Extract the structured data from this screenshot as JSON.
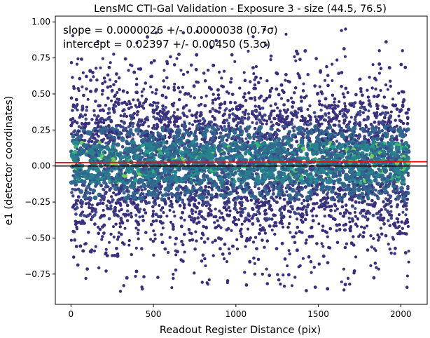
{
  "chart_data": {
    "type": "scatter",
    "title": "LensMC CTI-Gal Validation - Exposure 3 - size (44.5, 76.5)",
    "xlabel": "Readout Register Distance (pix)",
    "ylabel": "e1 (detector coordinates)",
    "xlim": [
      -95,
      2160
    ],
    "ylim": [
      -0.96,
      1.04
    ],
    "xticks": [
      0,
      500,
      1000,
      1500,
      2000
    ],
    "yticks": [
      -0.75,
      -0.5,
      -0.25,
      0.0,
      0.25,
      0.5,
      0.75,
      1.0
    ],
    "xtick_labels": [
      "0",
      "500",
      "1000",
      "1500",
      "2000"
    ],
    "ytick_labels": [
      "−0.75",
      "−0.50",
      "−0.25",
      "0.00",
      "0.25",
      "0.50",
      "0.75",
      "1.00"
    ],
    "grid": false,
    "colormap": "viridis",
    "annotations": [
      "slope = 0.0000026 +/- 0.0000038 (0.7σ)",
      "intercept = 0.02397 +/- 0.00450 (5.3σ)"
    ],
    "lines": {
      "zero_line": {
        "y": 0.0,
        "color": "#000000"
      },
      "fit_line": {
        "slope": 2.6e-06,
        "intercept": 0.02397,
        "color": "#ff0000"
      }
    },
    "points_summary": {
      "n_points_approx": 9000,
      "x_range": [
        0,
        2048
      ],
      "y_mean": 0.024,
      "y_std": 0.28,
      "y_range_observed": [
        -0.87,
        0.95
      ]
    },
    "outliers": [
      {
        "x": 1640,
        "y": 0.94
      },
      {
        "x": 1665,
        "y": 0.95
      },
      {
        "x": 1870,
        "y": 0.8
      },
      {
        "x": 2010,
        "y": 0.8
      },
      {
        "x": 300,
        "y": -0.87
      },
      {
        "x": 320,
        "y": -0.83
      },
      {
        "x": 430,
        "y": -0.84
      },
      {
        "x": 830,
        "y": -0.82
      },
      {
        "x": 1690,
        "y": -0.82
      },
      {
        "x": 1270,
        "y": -0.82
      },
      {
        "x": 90,
        "y": -0.78
      },
      {
        "x": 620,
        "y": -0.78
      }
    ]
  }
}
